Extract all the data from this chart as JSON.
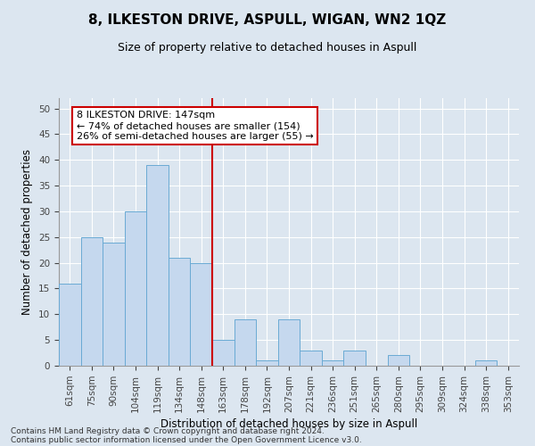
{
  "title": "8, ILKESTON DRIVE, ASPULL, WIGAN, WN2 1QZ",
  "subtitle": "Size of property relative to detached houses in Aspull",
  "xlabel": "Distribution of detached houses by size in Aspull",
  "ylabel": "Number of detached properties",
  "bins": [
    "61sqm",
    "75sqm",
    "90sqm",
    "104sqm",
    "119sqm",
    "134sqm",
    "148sqm",
    "163sqm",
    "178sqm",
    "192sqm",
    "207sqm",
    "221sqm",
    "236sqm",
    "251sqm",
    "265sqm",
    "280sqm",
    "295sqm",
    "309sqm",
    "324sqm",
    "338sqm",
    "353sqm"
  ],
  "values": [
    16,
    25,
    24,
    30,
    39,
    21,
    20,
    5,
    9,
    1,
    9,
    3,
    1,
    3,
    0,
    2,
    0,
    0,
    0,
    1,
    0
  ],
  "bar_color": "#c5d8ee",
  "bar_edge_color": "#6aaad4",
  "property_line_color": "#cc0000",
  "property_line_x": 6.5,
  "annotation_text": "8 ILKESTON DRIVE: 147sqm\n← 74% of detached houses are smaller (154)\n26% of semi-detached houses are larger (55) →",
  "annotation_box_color": "#ffffff",
  "annotation_box_edge_color": "#cc0000",
  "ylim": [
    0,
    52
  ],
  "yticks": [
    0,
    5,
    10,
    15,
    20,
    25,
    30,
    35,
    40,
    45,
    50
  ],
  "footer_line1": "Contains HM Land Registry data © Crown copyright and database right 2024.",
  "footer_line2": "Contains public sector information licensed under the Open Government Licence v3.0.",
  "background_color": "#dce6f0",
  "plot_background_color": "#dce6f0",
  "title_fontsize": 11,
  "subtitle_fontsize": 9,
  "axis_label_fontsize": 8.5,
  "tick_fontsize": 7.5,
  "annotation_fontsize": 8,
  "footer_fontsize": 6.5
}
